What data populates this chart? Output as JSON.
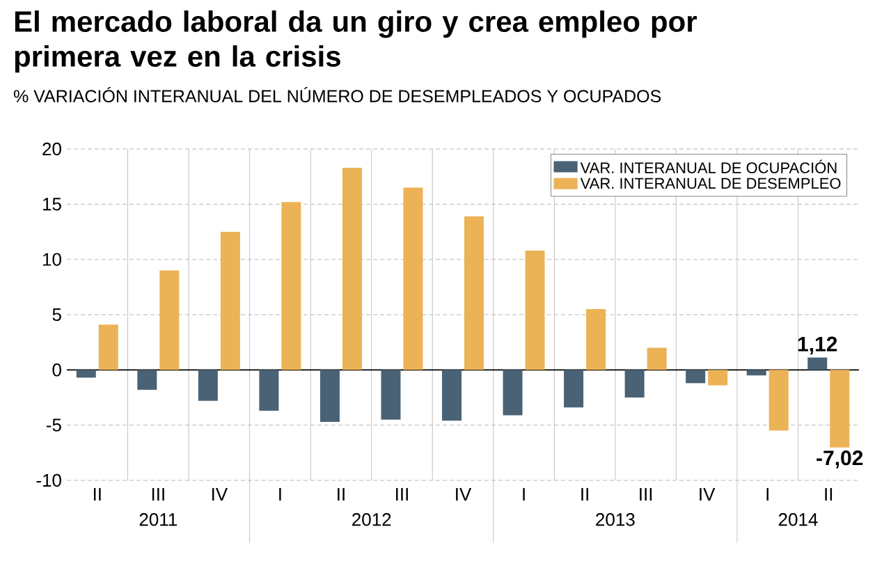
{
  "chart_data": {
    "type": "bar",
    "title": "El mercado laboral da un giro y crea empleo por primera vez en la crisis",
    "subtitle": "% VARIACIÓN INTERANUAL DEL NÚMERO DE DESEMPLEADOS Y OCUPADOS",
    "categories": [
      "II",
      "III",
      "IV",
      "I",
      "II",
      "III",
      "IV",
      "I",
      "II",
      "III",
      "IV",
      "I",
      "II"
    ],
    "series": [
      {
        "name": "VAR. INTERANUAL DE OCUPACIÓN",
        "color": "#4a6275",
        "values": [
          -0.7,
          -1.8,
          -2.8,
          -3.7,
          -4.7,
          -4.5,
          -4.6,
          -4.1,
          -3.4,
          -2.5,
          -1.2,
          -0.5,
          1.12
        ],
        "value_labels": [
          null,
          null,
          null,
          null,
          null,
          null,
          null,
          null,
          null,
          null,
          null,
          null,
          "1,12"
        ]
      },
      {
        "name": "VAR. INTERANUAL DE DESEMPLEO",
        "color": "#ecb256",
        "values": [
          4.1,
          9.0,
          12.5,
          15.2,
          18.3,
          16.5,
          13.9,
          10.8,
          5.5,
          2.0,
          -1.4,
          -5.5,
          -7.02
        ],
        "value_labels": [
          null,
          null,
          null,
          null,
          null,
          null,
          null,
          null,
          null,
          null,
          null,
          null,
          "-7,02"
        ]
      }
    ],
    "annotations": [
      "2011",
      "2012",
      "2013",
      "2014"
    ],
    "ylim": [
      -10,
      20
    ],
    "yticks": [
      -10,
      -5,
      0,
      5,
      10,
      15,
      20
    ],
    "grid": true,
    "legend": "top right"
  }
}
